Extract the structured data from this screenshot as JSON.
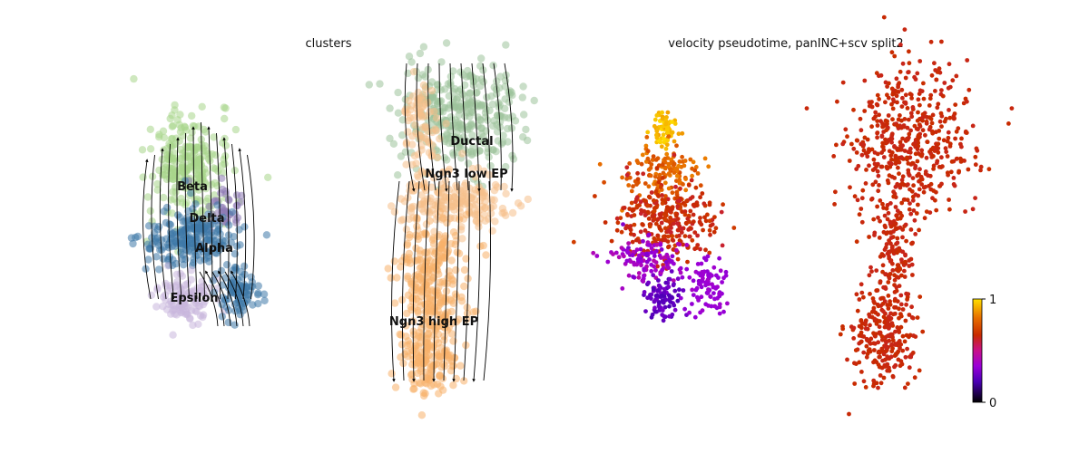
{
  "chart_data": [
    {
      "type": "scatter",
      "subtype": "umap-velocity-stream",
      "title": "clusters",
      "legend": "on data",
      "clusters": [
        {
          "name": "Beta",
          "color": "#a8d68a"
        },
        {
          "name": "Delta",
          "color": "#8e7ab5"
        },
        {
          "name": "Alpha",
          "color": "#3e79a7"
        },
        {
          "name": "Epsilon",
          "color": "#c9b6dc"
        },
        {
          "name": "Ductal",
          "color": "#9cc29a"
        },
        {
          "name": "Ngn3 low EP",
          "color": "#f6c08a"
        },
        {
          "name": "Ngn3 high EP",
          "color": "#f7b06a"
        }
      ]
    },
    {
      "type": "scatter",
      "subtype": "umap-continuous",
      "title": "velocity pseudotime, panINC+scv split2",
      "colorbar": {
        "min": 0,
        "max": 1,
        "tick_labels": [
          "1",
          "0"
        ],
        "colormap": "gnuplot"
      }
    }
  ]
}
